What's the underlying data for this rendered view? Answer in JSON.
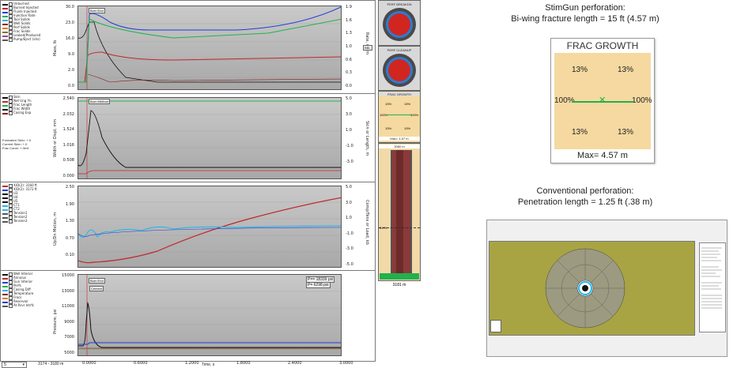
{
  "colors": {
    "black": "#111111",
    "red": "#c0272d",
    "blue": "#1a3fd6",
    "green": "#22b14c",
    "cyan": "#29b6e8",
    "darkred": "#8b1a1a",
    "panel_grad": "#bdbdbd",
    "sand": "#f5d9a0",
    "olive": "#a8a444"
  },
  "panel1": {
    "legend": [
      {
        "label": "Unburned",
        "color": "#111111"
      },
      {
        "label": "Burned Injected",
        "color": "#c0272d"
      },
      {
        "label": "Fluids Injected",
        "color": "#1a3fd6"
      },
      {
        "label": "Injection Rate",
        "color": "#22b14c"
      },
      {
        "label": "Tool Solids",
        "color": "#29b6e8"
      },
      {
        "label": "Well Solids",
        "color": "#8b1a1a"
      },
      {
        "label": "Perf Solids",
        "color": "#e07a2a"
      },
      {
        "label": "Frac Solids",
        "color": "#7a7a00"
      },
      {
        "label": "Leaked/Produced",
        "color": "#a040a0"
      },
      {
        "label": "Pump/Eject (shs)",
        "color": "#555555"
      }
    ],
    "left_ticks": [
      "30.0",
      "23.0",
      "16.0",
      "9.0",
      "2.0",
      "0.0"
    ],
    "right_ticks": [
      "1.9",
      "1.6",
      "1.3",
      "1.0",
      "0.6",
      "0.3",
      "0.0"
    ],
    "left_label": "Mass, lb",
    "right_label": "Rate, m³/m",
    "annot": "Burn End",
    "rate_tag": "BBL"
  },
  "panel2": {
    "legend": [
      {
        "label": "Skin",
        "color": "#111111"
      },
      {
        "label": "Net Ung Yn",
        "color": "#c0272d"
      },
      {
        "label": "Frac Length",
        "color": "#22b14c"
      },
      {
        "label": "Frac Width",
        "color": "#111111"
      },
      {
        "label": "Casing Exp",
        "color": "#8b1a1a"
      }
    ],
    "info": [
      "Formation Skin= +.0",
      "Current Skin= +.0",
      "Frac Cond= +.0e/4"
    ],
    "left_ticks": [
      "2.540",
      "2.032",
      "1.524",
      "1.016",
      "0.508",
      "0.000"
    ],
    "right_ticks": [
      "5.0",
      "3.0",
      "1.0",
      "-1.0",
      "-3.0"
    ],
    "left_label": "Width or Displ, mm",
    "right_label": "Skin or Length, m",
    "annot": "Burn Method"
  },
  "panel3": {
    "legend": [
      {
        "label": "X/D(2): 3160 ft",
        "color": "#c0272d"
      },
      {
        "label": "X/D(2): 3172 ft",
        "color": "#1a3fd6"
      },
      {
        "label": "U3",
        "color": "#111111"
      },
      {
        "label": "U4",
        "color": "#111111"
      },
      {
        "label": "U5",
        "color": "#111111"
      },
      {
        "label": "CT1",
        "color": "#29b6e8"
      },
      {
        "label": "CT2",
        "color": "#29b6e8"
      },
      {
        "label": "Tension1",
        "color": "#555555"
      },
      {
        "label": "Tension2",
        "color": "#555555"
      },
      {
        "label": "Tension3",
        "color": "#555555"
      }
    ],
    "left_ticks": [
      "2.50",
      "1.90",
      "1.30",
      "0.70",
      "0.10"
    ],
    "right_ticks": [
      "5.0",
      "3.0",
      "1.0",
      "-1.0",
      "-3.0",
      "-5.0"
    ],
    "left_label": "Up/Dn Motion, m",
    "right_label": "Comp/Tens or Load, kb"
  },
  "panel4": {
    "legend": [
      {
        "label": "Well Interior",
        "color": "#111111"
      },
      {
        "label": "Annulus",
        "color": "#c0272d"
      },
      {
        "label": "Gun Interior",
        "color": "#1a3fd6"
      },
      {
        "label": "Perfs",
        "color": "#22b14c"
      },
      {
        "label": "Casing Diff",
        "color": "#29b6e8"
      },
      {
        "label": "Temperature",
        "color": "#8b1a1a"
      },
      {
        "label": "Fracs",
        "color": "#e07a2a"
      },
      {
        "label": "Reservoir",
        "color": "#1a3fd6"
      },
      {
        "label": "At Rsvr Intrfc",
        "color": "#555555"
      }
    ],
    "left_ticks": [
      "15000",
      "13000",
      "11000",
      "9000",
      "7000",
      "5000"
    ],
    "left_label": "Pressure, psi",
    "annot_burn": "Burn End",
    "annot_cement": "Cement",
    "box1": "P== 18339 psi",
    "box2": "P= 6298 psi"
  },
  "xaxis": {
    "ticks": [
      "0.0000",
      "0.6000",
      "1.2000",
      "1.8000",
      "2.4000",
      "3.0000"
    ],
    "label": "Time, s",
    "left_field": "5",
    "range_text": "3174 - 3180 m"
  },
  "gauges": {
    "breakdown": "PERF BREAKDN",
    "cleanup": "PERF CLEANUP",
    "frac": "FRAC GROWTH",
    "frac_pcts": [
      "13%",
      "13%",
      "100%",
      "100%",
      "13%",
      "13%"
    ],
    "frac_max": "Max= 4.57 m",
    "top_depth": "3080 m",
    "bottom_depth": "3181 m",
    "mid_depth": "3174"
  },
  "stimgun": {
    "line1": "StimGun perforation:",
    "line2": "Bi-wing fracture length = 15 ft (4.57 m)",
    "box_title": "FRAC GROWTH",
    "pcts": [
      "13%",
      "13%",
      "100%",
      "100%",
      "13%",
      "13%"
    ],
    "max": "Max=  4.57 m"
  },
  "conventional": {
    "line1": "Conventional perforation:",
    "line2": "Penetration length = 1.25 ft (.38 m)"
  }
}
